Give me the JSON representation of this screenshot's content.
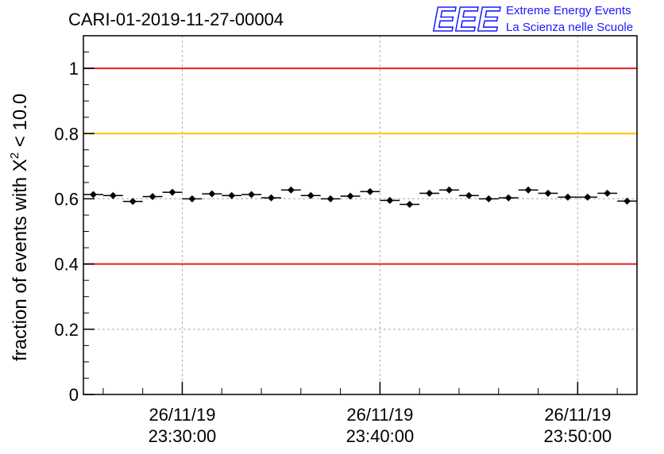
{
  "chart_data": {
    "type": "scatter",
    "title": "CARI-01-2019-11-27-00004",
    "ylabel_prefix": "fraction of events with ",
    "ylabel_symbol": "X",
    "ylabel_superscript": "2",
    "ylabel_suffix": " < 10.0",
    "xlabel": "",
    "ylim": [
      0,
      1.1
    ],
    "y_ticks": [
      0,
      0.2,
      0.4,
      0.6,
      0.8,
      1
    ],
    "y_tick_labels": [
      "0",
      "0.2",
      "0.4",
      "0.6",
      "0.8",
      "1"
    ],
    "x_time_range": [
      "2019-11-26 23:25:00",
      "2019-11-26 23:53:00"
    ],
    "x_ticks": [
      {
        "time": "2019-11-26 23:30:00",
        "date": "26/11/19",
        "clock": "23:30:00"
      },
      {
        "time": "2019-11-26 23:40:00",
        "date": "26/11/19",
        "clock": "23:40:00"
      },
      {
        "time": "2019-11-26 23:50:00",
        "date": "26/11/19",
        "clock": "23:50:00"
      }
    ],
    "grid": true,
    "reference_lines": [
      {
        "y": 1.0,
        "color": "#e8201c"
      },
      {
        "y": 0.8,
        "color": "#ffc400"
      },
      {
        "y": 0.4,
        "color": "#e8201c"
      }
    ],
    "series": [
      {
        "points": [
          {
            "x": "2019-11-26 23:25:30",
            "y": 0.613
          },
          {
            "x": "2019-11-26 23:26:30",
            "y": 0.61
          },
          {
            "x": "2019-11-26 23:27:30",
            "y": 0.592
          },
          {
            "x": "2019-11-26 23:28:30",
            "y": 0.607
          },
          {
            "x": "2019-11-26 23:29:30",
            "y": 0.62
          },
          {
            "x": "2019-11-26 23:30:30",
            "y": 0.6
          },
          {
            "x": "2019-11-26 23:31:30",
            "y": 0.615
          },
          {
            "x": "2019-11-26 23:32:30",
            "y": 0.61
          },
          {
            "x": "2019-11-26 23:33:30",
            "y": 0.613
          },
          {
            "x": "2019-11-26 23:34:30",
            "y": 0.603
          },
          {
            "x": "2019-11-26 23:35:30",
            "y": 0.627
          },
          {
            "x": "2019-11-26 23:36:30",
            "y": 0.61
          },
          {
            "x": "2019-11-26 23:37:30",
            "y": 0.6
          },
          {
            "x": "2019-11-26 23:38:30",
            "y": 0.608
          },
          {
            "x": "2019-11-26 23:39:30",
            "y": 0.622
          },
          {
            "x": "2019-11-26 23:40:30",
            "y": 0.595
          },
          {
            "x": "2019-11-26 23:41:30",
            "y": 0.583
          },
          {
            "x": "2019-11-26 23:42:30",
            "y": 0.617
          },
          {
            "x": "2019-11-26 23:43:30",
            "y": 0.627
          },
          {
            "x": "2019-11-26 23:44:30",
            "y": 0.61
          },
          {
            "x": "2019-11-26 23:45:30",
            "y": 0.6
          },
          {
            "x": "2019-11-26 23:46:30",
            "y": 0.603
          },
          {
            "x": "2019-11-26 23:47:30",
            "y": 0.627
          },
          {
            "x": "2019-11-26 23:48:30",
            "y": 0.617
          },
          {
            "x": "2019-11-26 23:49:30",
            "y": 0.605
          },
          {
            "x": "2019-11-26 23:50:30",
            "y": 0.605
          },
          {
            "x": "2019-11-26 23:51:30",
            "y": 0.617
          },
          {
            "x": "2019-11-26 23:52:30",
            "y": 0.593
          }
        ],
        "bin_width_minutes": 1,
        "color": "#000000"
      }
    ]
  },
  "logo": {
    "mark": "EEE",
    "line1": "Extreme Energy Events",
    "line2": "La Scienza nelle Scuole",
    "color": "#1a1aff"
  }
}
